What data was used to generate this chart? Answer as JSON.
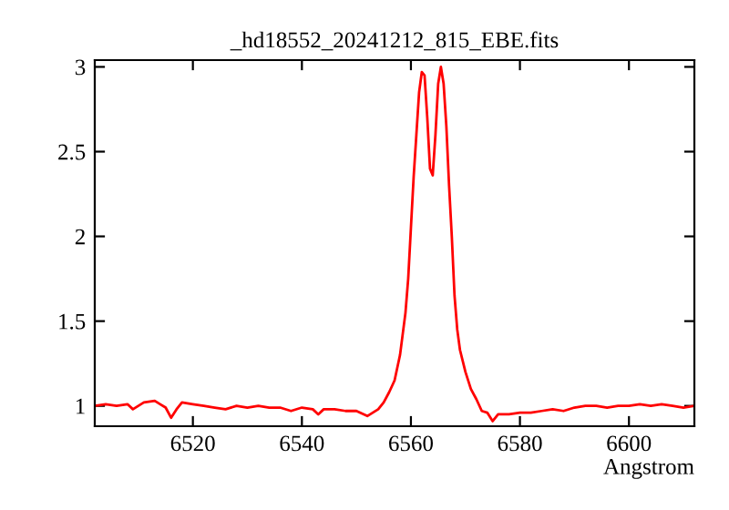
{
  "chart_data": {
    "type": "line",
    "title": "_hd18552_20241212_815_EBE.fits",
    "xlabel": "Angstrom",
    "x": [
      6502,
      6504,
      6506,
      6508,
      6509,
      6511,
      6513,
      6514,
      6515,
      6516,
      6517,
      6518,
      6520,
      6522,
      6524,
      6526,
      6528,
      6530,
      6532,
      6534,
      6536,
      6538,
      6540,
      6542,
      6543,
      6544,
      6546,
      6548,
      6550,
      6552,
      6553,
      6554,
      6555,
      6556,
      6557,
      6558,
      6559,
      6559.5,
      6560,
      6560.5,
      6561,
      6561.5,
      6562,
      6562.5,
      6563,
      6563.5,
      6564,
      6564.5,
      6565,
      6565.5,
      6566,
      6566.5,
      6567,
      6567.5,
      6568,
      6568.5,
      6569,
      6570,
      6571,
      6572,
      6573,
      6574,
      6575,
      6576,
      6578,
      6580,
      6582,
      6584,
      6586,
      6588,
      6590,
      6592,
      6594,
      6596,
      6598,
      6600,
      6602,
      6604,
      6606,
      6608,
      6610,
      6612
    ],
    "series": [
      {
        "color": "#ff0000",
        "values": [
          1.0,
          1.01,
          1.0,
          1.01,
          0.98,
          1.02,
          1.03,
          1.01,
          0.99,
          0.93,
          0.98,
          1.02,
          1.01,
          1.0,
          0.99,
          0.98,
          1.0,
          0.99,
          1.0,
          0.99,
          0.99,
          0.97,
          0.99,
          0.98,
          0.95,
          0.98,
          0.98,
          0.97,
          0.97,
          0.94,
          0.96,
          0.98,
          1.02,
          1.08,
          1.15,
          1.3,
          1.55,
          1.75,
          2.05,
          2.35,
          2.6,
          2.85,
          2.97,
          2.95,
          2.7,
          2.4,
          2.36,
          2.6,
          2.9,
          3.0,
          2.9,
          2.65,
          2.3,
          2.0,
          1.65,
          1.45,
          1.33,
          1.2,
          1.1,
          1.04,
          0.97,
          0.96,
          0.91,
          0.95,
          0.95,
          0.96,
          0.96,
          0.97,
          0.98,
          0.97,
          0.99,
          1.0,
          1.0,
          0.99,
          1.0,
          1.0,
          1.01,
          1.0,
          1.01,
          1.0,
          0.99,
          1.0
        ]
      }
    ],
    "xlim": [
      6502,
      6612
    ],
    "ylim": [
      0.88,
      3.04
    ],
    "xticks": [
      6520,
      6540,
      6560,
      6580,
      6600
    ],
    "yticks": [
      1,
      1.5,
      2,
      2.5,
      3
    ],
    "grid": false,
    "legend": false,
    "marker": "none",
    "line_style": "solid"
  }
}
